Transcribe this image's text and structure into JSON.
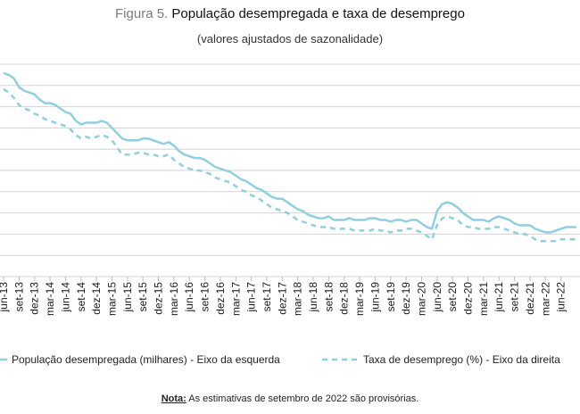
{
  "figure": {
    "prefix": "Figura 5.",
    "title": "População desempregada e taxa de desemprego",
    "subtitle": "(valores ajustados de sazonalidade)"
  },
  "legend": {
    "series1": "População desempregada (milhares) - Eixo da esquerda",
    "series2": "Taxa de desemprego (%) - Eixo da direita"
  },
  "note": {
    "label": "Nota:",
    "text": "As estimativas de setembro de 2022 são provisórias."
  },
  "colors": {
    "line": "#8fcfe0",
    "grid": "#d3d3d3",
    "text": "#1a1a1a"
  },
  "chart_data": {
    "type": "line",
    "x": [
      "jun-13",
      "jul-13",
      "ago-13",
      "set-13",
      "out-13",
      "nov-13",
      "dez-13",
      "jan-14",
      "fev-14",
      "mar-14",
      "abr-14",
      "mai-14",
      "jun-14",
      "jul-14",
      "ago-14",
      "set-14",
      "out-14",
      "nov-14",
      "dez-14",
      "jan-15",
      "fev-15",
      "mar-15",
      "abr-15",
      "mai-15",
      "jun-15",
      "jul-15",
      "ago-15",
      "set-15",
      "out-15",
      "nov-15",
      "dez-15",
      "jan-16",
      "fev-16",
      "mar-16",
      "abr-16",
      "mai-16",
      "jun-16",
      "jul-16",
      "ago-16",
      "set-16",
      "out-16",
      "nov-16",
      "dez-16",
      "jan-17",
      "fev-17",
      "mar-17",
      "abr-17",
      "mai-17",
      "jun-17",
      "jul-17",
      "ago-17",
      "set-17",
      "out-17",
      "nov-17",
      "dez-17",
      "jan-18",
      "fev-18",
      "mar-18",
      "abr-18",
      "mai-18",
      "jun-18",
      "jul-18",
      "ago-18",
      "set-18",
      "out-18",
      "nov-18",
      "dez-18",
      "jan-19",
      "fev-19",
      "mar-19",
      "abr-19",
      "mai-19",
      "jun-19",
      "jul-19",
      "ago-19",
      "set-19",
      "out-19",
      "nov-19",
      "dez-19",
      "jan-20",
      "fev-20",
      "mar-20",
      "abr-20",
      "mai-20",
      "jun-20",
      "jul-20",
      "ago-20",
      "set-20",
      "out-20",
      "nov-20",
      "dez-20",
      "jan-21",
      "fev-21",
      "mar-21",
      "abr-21",
      "mai-21",
      "jun-21",
      "jul-21",
      "ago-21",
      "set-21",
      "out-21",
      "nov-21",
      "dez-21",
      "jan-22",
      "fev-22",
      "mar-22",
      "abr-22",
      "mai-22",
      "jun-22",
      "jul-22",
      "ago-22",
      "set-22"
    ],
    "tick_labels": [
      "jun-13",
      "set-13",
      "dez-13",
      "mar-14",
      "jun-14",
      "set-14",
      "dez-14",
      "mar-15",
      "jun-15",
      "set-15",
      "dez-15",
      "mar-16",
      "jun-16",
      "set-16",
      "dez-16",
      "mar-17",
      "jun-17",
      "set-17",
      "dez-17",
      "mar-18",
      "jun-18",
      "set-18",
      "dez-18",
      "mar-19",
      "jun-19",
      "set-19",
      "dez-19",
      "mar-20",
      "jun-20",
      "set-20",
      "dez-20",
      "mar-21",
      "jun-21",
      "set-21",
      "dez-21",
      "mar-22",
      "jun-22"
    ],
    "series": [
      {
        "name": "População desempregada (milhares) - Eixo da esquerda",
        "axis": "left",
        "style": "solid",
        "values": [
          1.15,
          1.14,
          1.12,
          1.07,
          1.05,
          1.04,
          1.03,
          1.0,
          0.98,
          0.98,
          0.97,
          0.95,
          0.93,
          0.92,
          0.88,
          0.86,
          0.87,
          0.87,
          0.87,
          0.88,
          0.87,
          0.84,
          0.81,
          0.78,
          0.77,
          0.77,
          0.77,
          0.78,
          0.78,
          0.77,
          0.76,
          0.75,
          0.76,
          0.74,
          0.71,
          0.69,
          0.68,
          0.67,
          0.67,
          0.66,
          0.64,
          0.62,
          0.61,
          0.6,
          0.59,
          0.57,
          0.55,
          0.54,
          0.52,
          0.5,
          0.49,
          0.47,
          0.45,
          0.44,
          0.44,
          0.42,
          0.4,
          0.38,
          0.37,
          0.35,
          0.34,
          0.33,
          0.33,
          0.34,
          0.32,
          0.32,
          0.32,
          0.33,
          0.32,
          0.32,
          0.32,
          0.33,
          0.33,
          0.32,
          0.32,
          0.31,
          0.32,
          0.32,
          0.31,
          0.32,
          0.32,
          0.3,
          0.28,
          0.27,
          0.37,
          0.41,
          0.42,
          0.41,
          0.39,
          0.36,
          0.34,
          0.32,
          0.32,
          0.32,
          0.31,
          0.33,
          0.34,
          0.33,
          0.32,
          0.3,
          0.29,
          0.29,
          0.29,
          0.27,
          0.26,
          0.25,
          0.25,
          0.26,
          0.27,
          0.28,
          0.28,
          0.28
        ]
      },
      {
        "name": "Taxa de desemprego (%) - Eixo da direita",
        "axis": "right",
        "style": "dashed",
        "values": [
          1.06,
          1.04,
          1.01,
          0.97,
          0.95,
          0.94,
          0.92,
          0.91,
          0.89,
          0.88,
          0.87,
          0.86,
          0.85,
          0.83,
          0.8,
          0.78,
          0.79,
          0.78,
          0.79,
          0.8,
          0.79,
          0.77,
          0.73,
          0.69,
          0.69,
          0.69,
          0.7,
          0.7,
          0.69,
          0.69,
          0.68,
          0.68,
          0.69,
          0.66,
          0.64,
          0.62,
          0.61,
          0.6,
          0.6,
          0.59,
          0.58,
          0.56,
          0.55,
          0.54,
          0.53,
          0.51,
          0.49,
          0.48,
          0.46,
          0.45,
          0.43,
          0.41,
          0.39,
          0.38,
          0.37,
          0.36,
          0.34,
          0.32,
          0.31,
          0.3,
          0.29,
          0.28,
          0.28,
          0.28,
          0.27,
          0.27,
          0.27,
          0.27,
          0.26,
          0.26,
          0.26,
          0.26,
          0.27,
          0.26,
          0.26,
          0.25,
          0.26,
          0.26,
          0.27,
          0.27,
          0.26,
          0.25,
          0.23,
          0.21,
          0.29,
          0.33,
          0.34,
          0.33,
          0.32,
          0.29,
          0.28,
          0.28,
          0.27,
          0.27,
          0.27,
          0.28,
          0.28,
          0.27,
          0.26,
          0.25,
          0.24,
          0.24,
          0.23,
          0.21,
          0.2,
          0.2,
          0.2,
          0.2,
          0.21,
          0.21,
          0.21,
          0.21
        ]
      }
    ],
    "grid": true,
    "legend_position": "bottom",
    "ylim": [
      0,
      1.2
    ]
  }
}
